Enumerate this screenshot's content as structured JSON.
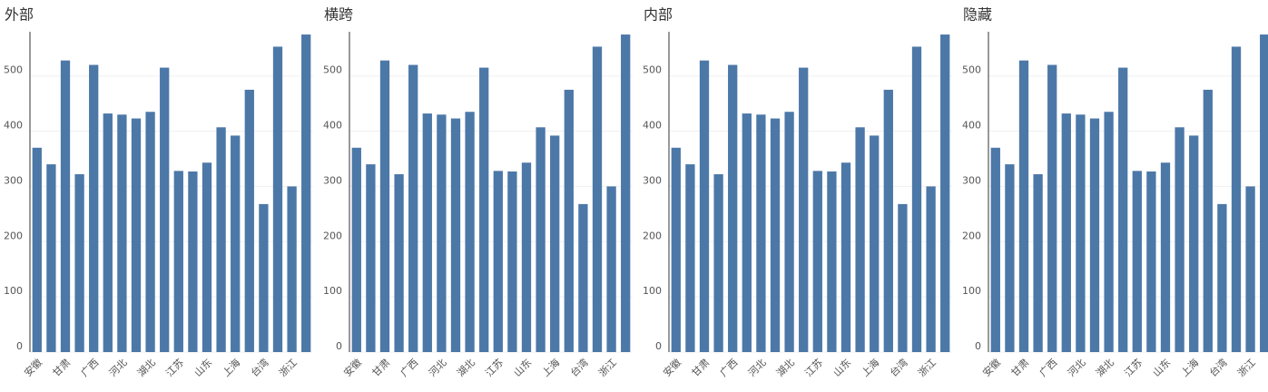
{
  "chart_data": [
    {
      "type": "bar",
      "title": "外部",
      "categories": [
        "安徽",
        null,
        "甘肃",
        null,
        "广西",
        null,
        "河北",
        null,
        "湖北",
        null,
        "江苏",
        null,
        "山东",
        null,
        "上海",
        null,
        "台湾",
        null,
        "浙江",
        null
      ],
      "values": [
        370,
        340,
        528,
        322,
        520,
        432,
        430,
        423,
        435,
        515,
        328,
        327,
        343,
        407,
        392,
        475,
        268,
        553,
        300,
        575
      ],
      "color": "#4c78a8",
      "ylim": [
        0,
        580
      ],
      "yticks": [
        0,
        100,
        200,
        300,
        400,
        500
      ],
      "grid": true
    },
    {
      "type": "bar",
      "title": "横跨",
      "categories": [
        "安徽",
        null,
        "甘肃",
        null,
        "广西",
        null,
        "河北",
        null,
        "湖北",
        null,
        "江苏",
        null,
        "山东",
        null,
        "上海",
        null,
        "台湾",
        null,
        "浙江",
        null
      ],
      "values": [
        370,
        340,
        528,
        322,
        520,
        432,
        430,
        423,
        435,
        515,
        328,
        327,
        343,
        407,
        392,
        475,
        268,
        553,
        300,
        575
      ],
      "color": "#4c78a8",
      "ylim": [
        0,
        580
      ],
      "yticks": [
        0,
        100,
        200,
        300,
        400,
        500
      ],
      "grid": true
    },
    {
      "type": "bar",
      "title": "内部",
      "categories": [
        "安徽",
        null,
        "甘肃",
        null,
        "广西",
        null,
        "河北",
        null,
        "湖北",
        null,
        "江苏",
        null,
        "山东",
        null,
        "上海",
        null,
        "台湾",
        null,
        "浙江",
        null
      ],
      "values": [
        370,
        340,
        528,
        322,
        520,
        432,
        430,
        423,
        435,
        515,
        328,
        327,
        343,
        407,
        392,
        475,
        268,
        553,
        300,
        575
      ],
      "color": "#4c78a8",
      "ylim": [
        0,
        580
      ],
      "yticks": [
        0,
        100,
        200,
        300,
        400,
        500
      ],
      "grid": true
    },
    {
      "type": "bar",
      "title": "隐藏",
      "categories": [
        "安徽",
        null,
        "甘肃",
        null,
        "广西",
        null,
        "河北",
        null,
        "湖北",
        null,
        "江苏",
        null,
        "山东",
        null,
        "上海",
        null,
        "台湾",
        null,
        "浙江",
        null
      ],
      "values": [
        370,
        340,
        528,
        322,
        520,
        432,
        430,
        423,
        435,
        515,
        328,
        327,
        343,
        407,
        392,
        475,
        268,
        553,
        300,
        575
      ],
      "color": "#4c78a8",
      "ylim": [
        0,
        580
      ],
      "yticks": [
        0,
        100,
        200,
        300,
        400,
        500
      ],
      "grid": true
    }
  ]
}
